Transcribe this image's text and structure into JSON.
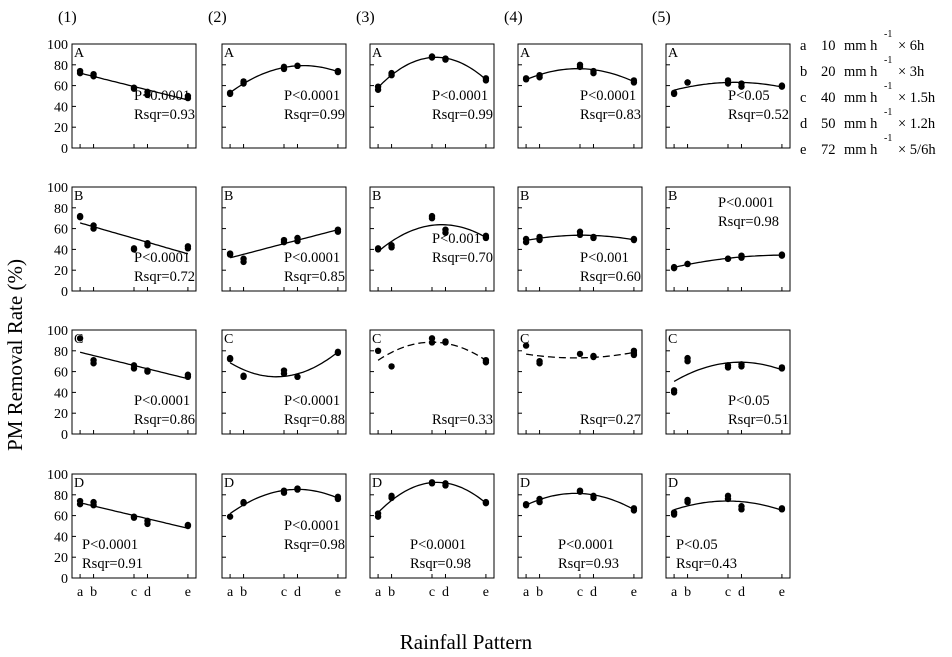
{
  "figure": {
    "ylabel": "PM Removal Rate (%)",
    "xlabel": "Rainfall Pattern",
    "columns": [
      "(1)",
      "(2)",
      "(3)",
      "(4)",
      "(5)"
    ],
    "rows": [
      "A",
      "B",
      "C",
      "D"
    ]
  },
  "legend": [
    {
      "key": "a",
      "intensity": "10",
      "unit": "mm h",
      "sup": "-1",
      "duration": "× 6h"
    },
    {
      "key": "b",
      "intensity": "20",
      "unit": "mm h",
      "sup": "-1",
      "duration": "× 3h"
    },
    {
      "key": "c",
      "intensity": "40",
      "unit": "mm h",
      "sup": "-1",
      "duration": "× 1.5h"
    },
    {
      "key": "d",
      "intensity": "50",
      "unit": "mm h",
      "sup": "-1",
      "duration": "× 1.2h"
    },
    {
      "key": "e",
      "intensity": "72",
      "unit": "mm h",
      "sup": "-1",
      "duration": "× 5/6h"
    }
  ],
  "chart_data": {
    "type": "scatter",
    "layout": "4 rows (A-D) x 5 columns (1)-(5) panel grid with fitted curves",
    "x_categories": [
      "a",
      "b",
      "c",
      "d",
      "e"
    ],
    "x_positions": {
      "a": 1,
      "b": 1.5,
      "c": 3,
      "d": 3.5,
      "e": 5
    },
    "ylim": [
      0,
      100
    ],
    "yticks": [
      0,
      20,
      40,
      60,
      80,
      100
    ],
    "panels": [
      {
        "row": "A",
        "col": "(1)",
        "p": "P<0.0001",
        "rsqr": "Rsqr=0.93",
        "fit": "linear",
        "dashed": false,
        "stats_pos": "mid-right",
        "points": [
          [
            1,
            74
          ],
          [
            1,
            72
          ],
          [
            1.5,
            71
          ],
          [
            1.5,
            69
          ],
          [
            3,
            58
          ],
          [
            3,
            57
          ],
          [
            3.5,
            54
          ],
          [
            3.5,
            51
          ],
          [
            5,
            50
          ],
          [
            5,
            48
          ]
        ],
        "fit_values": [
          72,
          68.5,
          57,
          53.5,
          46
        ]
      },
      {
        "row": "A",
        "col": "(2)",
        "p": "P<0.0001",
        "rsqr": "Rsqr=0.99",
        "fit": "quadratic",
        "dashed": false,
        "stats_pos": "mid-right",
        "points": [
          [
            1,
            52
          ],
          [
            1,
            53
          ],
          [
            1.5,
            62
          ],
          [
            1.5,
            64
          ],
          [
            3,
            76
          ],
          [
            3,
            78
          ],
          [
            3.5,
            79
          ],
          [
            3.5,
            79
          ],
          [
            5,
            73
          ],
          [
            5,
            74
          ]
        ],
        "fit_values": [
          52,
          63.5,
          77.5,
          79,
          73
        ]
      },
      {
        "row": "A",
        "col": "(3)",
        "p": "P<0.0001",
        "rsqr": "Rsqr=0.99",
        "fit": "quadratic",
        "dashed": false,
        "stats_pos": "mid-right",
        "points": [
          [
            1,
            56
          ],
          [
            1,
            59
          ],
          [
            1.5,
            70
          ],
          [
            1.5,
            72
          ],
          [
            3,
            88
          ],
          [
            3,
            87
          ],
          [
            3.5,
            86
          ],
          [
            3.5,
            85
          ],
          [
            5,
            65
          ],
          [
            5,
            67
          ]
        ],
        "fit_values": [
          57,
          71,
          87,
          85,
          66
        ]
      },
      {
        "row": "A",
        "col": "(4)",
        "p": "P<0.0001",
        "rsqr": "Rsqr=0.83",
        "fit": "quadratic",
        "dashed": false,
        "stats_pos": "mid-right",
        "points": [
          [
            1,
            67
          ],
          [
            1,
            66
          ],
          [
            1.5,
            68
          ],
          [
            1.5,
            70
          ],
          [
            3,
            78
          ],
          [
            3,
            80
          ],
          [
            3.5,
            72
          ],
          [
            3.5,
            74
          ],
          [
            5,
            63
          ],
          [
            5,
            65
          ]
        ],
        "fit_values": [
          66,
          70,
          76,
          75,
          63
        ]
      },
      {
        "row": "A",
        "col": "(5)",
        "p": "P<0.05",
        "rsqr": "Rsqr=0.52",
        "fit": "quadratic",
        "dashed": false,
        "stats_pos": "mid-right",
        "points": [
          [
            1,
            52
          ],
          [
            1,
            53
          ],
          [
            1.5,
            63
          ],
          [
            1.5,
            63
          ],
          [
            3,
            62
          ],
          [
            3,
            65
          ],
          [
            3.5,
            59
          ],
          [
            3.5,
            62
          ],
          [
            5,
            59
          ],
          [
            5,
            60
          ]
        ],
        "fit_values": [
          54,
          59,
          64,
          63.5,
          60
        ]
      },
      {
        "row": "B",
        "col": "(1)",
        "p": "P<0.0001",
        "rsqr": "Rsqr=0.72",
        "fit": "linear",
        "dashed": false,
        "stats_pos": "bottom-right",
        "points": [
          [
            1,
            72
          ],
          [
            1,
            71
          ],
          [
            1.5,
            63
          ],
          [
            1.5,
            60
          ],
          [
            3,
            40
          ],
          [
            3,
            41
          ],
          [
            3.5,
            44
          ],
          [
            3.5,
            46
          ],
          [
            5,
            41
          ],
          [
            5,
            43
          ]
        ],
        "fit_values": [
          65,
          61,
          49,
          45.5,
          35
        ]
      },
      {
        "row": "B",
        "col": "(2)",
        "p": "P<0.0001",
        "rsqr": "Rsqr=0.85",
        "fit": "linear",
        "dashed": false,
        "stats_pos": "bottom-right",
        "points": [
          [
            1,
            35
          ],
          [
            1,
            36
          ],
          [
            1.5,
            28
          ],
          [
            1.5,
            31
          ],
          [
            3,
            47
          ],
          [
            3,
            49
          ],
          [
            3.5,
            48
          ],
          [
            3.5,
            51
          ],
          [
            5,
            57
          ],
          [
            5,
            59
          ]
        ],
        "fit_values": [
          33,
          36,
          45,
          48,
          58
        ]
      },
      {
        "row": "B",
        "col": "(3)",
        "p": "P<0.001",
        "rsqr": "Rsqr=0.70",
        "fit": "quadratic",
        "dashed": false,
        "stats_pos": "mid-right",
        "points": [
          [
            1,
            40
          ],
          [
            1,
            41
          ],
          [
            1.5,
            42
          ],
          [
            1.5,
            44
          ],
          [
            3,
            70
          ],
          [
            3,
            72
          ],
          [
            3.5,
            56
          ],
          [
            3.5,
            59
          ],
          [
            5,
            51
          ],
          [
            5,
            53
          ]
        ],
        "fit_values": [
          40,
          49,
          62,
          62,
          53
        ]
      },
      {
        "row": "B",
        "col": "(4)",
        "p": "P<0.001",
        "rsqr": "Rsqr=0.60",
        "fit": "quadratic",
        "dashed": false,
        "stats_pos": "bottom-right",
        "points": [
          [
            1,
            47
          ],
          [
            1,
            50
          ],
          [
            1.5,
            49
          ],
          [
            1.5,
            52
          ],
          [
            3,
            54
          ],
          [
            3,
            57
          ],
          [
            3.5,
            51
          ],
          [
            3.5,
            52
          ],
          [
            5,
            49
          ],
          [
            5,
            50
          ]
        ],
        "fit_values": [
          49,
          51,
          53,
          52.5,
          49
        ]
      },
      {
        "row": "B",
        "col": "(5)",
        "p": "P<0.0001",
        "rsqr": "Rsqr=0.98",
        "fit": "quadratic",
        "dashed": false,
        "stats_pos": "top-right",
        "points": [
          [
            1,
            22
          ],
          [
            1,
            23
          ],
          [
            1.5,
            26
          ],
          [
            1.5,
            26
          ],
          [
            3,
            31
          ],
          [
            3,
            31
          ],
          [
            3.5,
            32
          ],
          [
            3.5,
            34
          ],
          [
            5,
            34
          ],
          [
            5,
            35
          ]
        ],
        "fit_values": [
          22,
          25,
          31,
          32.5,
          35
        ]
      },
      {
        "row": "C",
        "col": "(1)",
        "p": "P<0.0001",
        "rsqr": "Rsqr=0.86",
        "fit": "linear",
        "dashed": false,
        "stats_pos": "bottom-right",
        "points": [
          [
            1,
            92
          ],
          [
            1.5,
            71
          ],
          [
            1.5,
            68
          ],
          [
            3,
            63
          ],
          [
            3,
            66
          ],
          [
            3.5,
            60
          ],
          [
            3.5,
            61
          ],
          [
            5,
            55
          ],
          [
            5,
            57
          ]
        ],
        "fit_values": [
          82,
          78,
          66,
          62,
          53
        ]
      },
      {
        "row": "C",
        "col": "(2)",
        "p": "P<0.0001",
        "rsqr": "Rsqr=0.88",
        "fit": "quadratic",
        "dashed": false,
        "stats_pos": "bottom-right",
        "points": [
          [
            1,
            72
          ],
          [
            1,
            73
          ],
          [
            1.5,
            56
          ],
          [
            1.5,
            55
          ],
          [
            3,
            61
          ],
          [
            3,
            58
          ],
          [
            3.5,
            55
          ],
          [
            5,
            78
          ],
          [
            5,
            79
          ]
        ],
        "fit_values": [
          72,
          61,
          54,
          56,
          78
        ]
      },
      {
        "row": "C",
        "col": "(3)",
        "p": "",
        "rsqr": "Rsqr=0.33",
        "fit": "quadratic",
        "dashed": true,
        "stats_pos": "bottom-right",
        "points": [
          [
            1,
            80
          ],
          [
            1.5,
            65
          ],
          [
            3,
            92
          ],
          [
            3,
            88
          ],
          [
            3.5,
            88
          ],
          [
            3.5,
            89
          ],
          [
            5,
            69
          ],
          [
            5,
            71
          ]
        ],
        "fit_values": [
          73,
          79,
          87.5,
          87,
          74
        ]
      },
      {
        "row": "C",
        "col": "(4)",
        "p": "",
        "rsqr": "Rsqr=0.27",
        "fit": "quadratic",
        "dashed": true,
        "stats_pos": "bottom-right",
        "points": [
          [
            1,
            85
          ],
          [
            1.5,
            70
          ],
          [
            1.5,
            68
          ],
          [
            3,
            77
          ],
          [
            3.5,
            74
          ],
          [
            3.5,
            75
          ],
          [
            5,
            76
          ],
          [
            5,
            80
          ],
          [
            5,
            78
          ]
        ],
        "fit_values": [
          81,
          78,
          73.5,
          73,
          79
        ]
      },
      {
        "row": "C",
        "col": "(5)",
        "p": "P<0.05",
        "rsqr": "Rsqr=0.51",
        "fit": "quadratic",
        "dashed": false,
        "stats_pos": "bottom-right",
        "points": [
          [
            1,
            40
          ],
          [
            1,
            42
          ],
          [
            1.5,
            73
          ],
          [
            1.5,
            70
          ],
          [
            3,
            64
          ],
          [
            3,
            66
          ],
          [
            3.5,
            65
          ],
          [
            3.5,
            67
          ],
          [
            5,
            63
          ],
          [
            5,
            64
          ]
        ],
        "fit_values": [
          47,
          58,
          68.5,
          68,
          62
        ]
      },
      {
        "row": "D",
        "col": "(1)",
        "p": "P<0.0001",
        "rsqr": "Rsqr=0.91",
        "fit": "linear",
        "dashed": false,
        "stats_pos": "bottom-left",
        "points": [
          [
            1,
            74
          ],
          [
            1,
            71
          ],
          [
            1.5,
            73
          ],
          [
            1.5,
            70
          ],
          [
            3,
            59
          ],
          [
            3,
            58
          ],
          [
            3.5,
            55
          ],
          [
            3.5,
            52
          ],
          [
            5,
            50
          ],
          [
            5,
            51
          ]
        ],
        "fit_values": [
          72,
          69,
          59,
          56,
          49
        ]
      },
      {
        "row": "D",
        "col": "(2)",
        "p": "P<0.0001",
        "rsqr": "Rsqr=0.98",
        "fit": "quadratic",
        "dashed": false,
        "stats_pos": "mid-right",
        "points": [
          [
            1,
            59
          ],
          [
            1.5,
            72
          ],
          [
            1.5,
            73
          ],
          [
            3,
            82
          ],
          [
            3,
            84
          ],
          [
            3.5,
            85
          ],
          [
            3.5,
            86
          ],
          [
            5,
            76
          ],
          [
            5,
            78
          ]
        ],
        "fit_values": [
          60,
          72,
          84,
          85,
          77
        ]
      },
      {
        "row": "D",
        "col": "(3)",
        "p": "P<0.0001",
        "rsqr": "Rsqr=0.98",
        "fit": "quadratic",
        "dashed": false,
        "stats_pos": "bottom-center",
        "points": [
          [
            1,
            59
          ],
          [
            1,
            62
          ],
          [
            1.5,
            77
          ],
          [
            1.5,
            79
          ],
          [
            3,
            91
          ],
          [
            3,
            92
          ],
          [
            3.5,
            89
          ],
          [
            3.5,
            91
          ],
          [
            5,
            72
          ],
          [
            5,
            73
          ]
        ],
        "fit_values": [
          60,
          75,
          91,
          89,
          71
        ]
      },
      {
        "row": "D",
        "col": "(4)",
        "p": "P<0.0001",
        "rsqr": "Rsqr=0.93",
        "fit": "quadratic",
        "dashed": false,
        "stats_pos": "bottom-center",
        "points": [
          [
            1,
            70
          ],
          [
            1,
            71
          ],
          [
            1.5,
            73
          ],
          [
            1.5,
            76
          ],
          [
            3,
            83
          ],
          [
            3,
            84
          ],
          [
            3.5,
            77
          ],
          [
            3.5,
            79
          ],
          [
            5,
            65
          ],
          [
            5,
            67
          ]
        ],
        "fit_values": [
          69,
          75,
          82,
          80,
          65
        ]
      },
      {
        "row": "D",
        "col": "(5)",
        "p": "P<0.05",
        "rsqr": "Rsqr=0.43",
        "fit": "quadratic",
        "dashed": false,
        "stats_pos": "bottom-left",
        "points": [
          [
            1,
            61
          ],
          [
            1,
            63
          ],
          [
            1.5,
            73
          ],
          [
            1.5,
            75
          ],
          [
            3,
            76
          ],
          [
            3,
            79
          ],
          [
            3.5,
            66
          ],
          [
            3.5,
            69
          ],
          [
            5,
            66
          ],
          [
            5,
            67
          ]
        ],
        "fit_values": [
          64,
          69,
          74,
          72,
          65
        ]
      }
    ]
  }
}
